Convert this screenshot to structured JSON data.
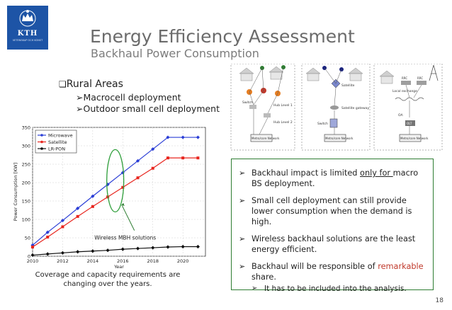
{
  "logo": {
    "text": "KTH",
    "subtext": "VETENSKAP OCH KONST"
  },
  "title": "Energy Efficiency Assessment",
  "subtitle": "Backhaul Power Consumption",
  "bullets": {
    "main": "Rural Areas",
    "sub": [
      "Macrocell deployment",
      "Outdoor small cell deployment"
    ]
  },
  "diagram": {
    "left_labels": [
      "Hub Level 1",
      "Hub Level 2",
      "Switch",
      "Metro/core Network"
    ],
    "middle_labels": [
      "Satellite",
      "Satellite gateway",
      "Switch",
      "Metro/core Network"
    ],
    "right_labels": [
      "RRC",
      "RRC",
      "Local exchange",
      "OLT",
      "Metro/core Network",
      "OA"
    ]
  },
  "chart_data": {
    "type": "line",
    "x": [
      2010,
      2011,
      2012,
      2013,
      2014,
      2015,
      2016,
      2017,
      2018,
      2019,
      2020,
      2021
    ],
    "series": [
      {
        "name": "Microwave",
        "color": "#2b3ed6",
        "values": [
          30,
          65,
          97,
          130,
          163,
          195,
          227,
          259,
          291,
          323,
          323,
          323
        ]
      },
      {
        "name": "Satellite",
        "color": "#e8251e",
        "values": [
          25,
          52,
          80,
          108,
          135,
          161,
          187,
          213,
          239,
          267,
          267,
          267
        ]
      },
      {
        "name": "LR-PON",
        "color": "#111111",
        "values": [
          3,
          6,
          9,
          12,
          14,
          16,
          19,
          21,
          23,
          25,
          26,
          26
        ]
      }
    ],
    "xlabel": "Year",
    "ylabel": "Power Consumption [KW]",
    "xticks": [
      2010,
      2012,
      2014,
      2016,
      2018,
      2020
    ],
    "yticks": [
      0,
      50,
      100,
      150,
      200,
      250,
      300,
      350
    ],
    "xlim": [
      2010,
      2021.5
    ],
    "ylim": [
      0,
      350
    ],
    "grid": true,
    "legend_position": "top-left",
    "annotation": "Wireless MBH solutions",
    "highlight_year": 2015.5
  },
  "caption": "Coverage and capacity requirements are changing over the years.",
  "box": {
    "item1_pre": "Backhaul impact is limited ",
    "item1_underline": "only for ",
    "item1_post": "macro BS deployment.",
    "item2": "Small cell deployment can still provide lower consumption when the demand is high.",
    "item3": "Wireless backhaul solutions are the least energy efficient.",
    "item4_pre": "Backhaul will be responsible of ",
    "item4_red": "remarkable",
    "item4_post": " share.",
    "subitem": "It has to be included into the analysis."
  },
  "page_number": "18"
}
